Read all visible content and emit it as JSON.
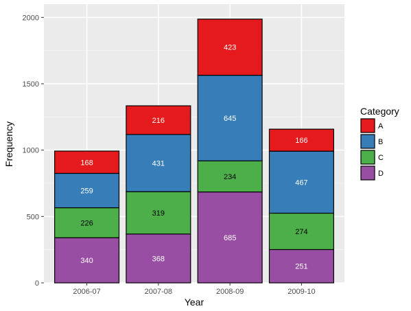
{
  "chart_data": {
    "type": "bar",
    "stacked": true,
    "categories": [
      "2006-07",
      "2007-08",
      "2008-09",
      "2009-10"
    ],
    "series": [
      {
        "name": "D",
        "color": "#984EA3",
        "label_color": "#ffffff",
        "values": [
          340,
          368,
          685,
          251
        ]
      },
      {
        "name": "C",
        "color": "#4DAF4A",
        "label_color": "#000000",
        "values": [
          226,
          319,
          234,
          274
        ]
      },
      {
        "name": "B",
        "color": "#377EB8",
        "label_color": "#ffffff",
        "values": [
          259,
          431,
          645,
          467
        ]
      },
      {
        "name": "A",
        "color": "#E41A1C",
        "label_color": "#ffffff",
        "values": [
          168,
          216,
          423,
          166
        ]
      }
    ],
    "xlabel": "Year",
    "ylabel": "Frequency",
    "ylim": [
      0,
      2100
    ],
    "yticks": [
      0,
      500,
      1000,
      1500,
      2000
    ],
    "grid": true,
    "panel_background": "#EBEBEB",
    "legend": {
      "title": "Category",
      "position": "right",
      "order": [
        "A",
        "B",
        "C",
        "D"
      ]
    }
  }
}
